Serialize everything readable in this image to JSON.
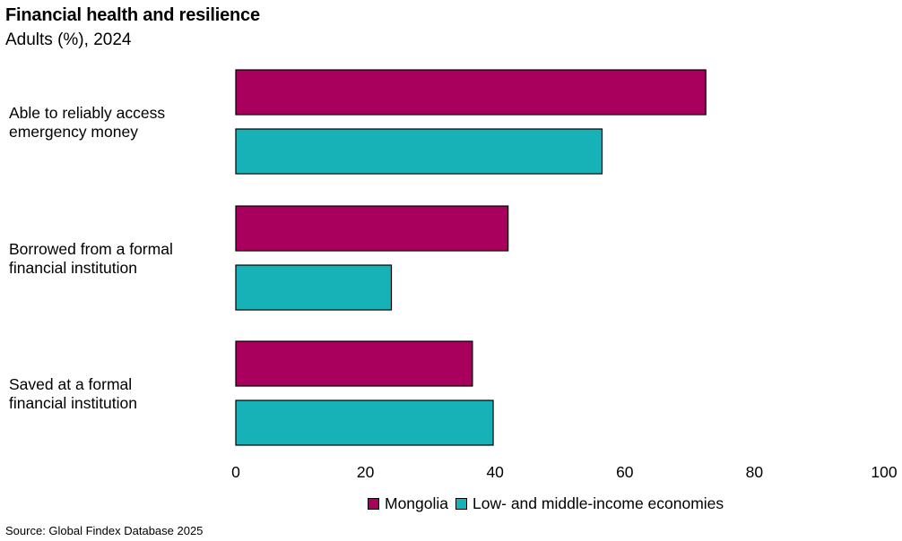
{
  "chart_data": {
    "type": "bar",
    "orientation": "horizontal",
    "title": "Financial health and resilience",
    "subtitle": "Adults (%), 2024",
    "categories": [
      [
        "Able to reliably access",
        "emergency money"
      ],
      [
        "Borrowed from a formal",
        "financial institution"
      ],
      [
        "Saved at a formal",
        "financial institution"
      ]
    ],
    "series": [
      {
        "name": "Mongolia",
        "color": "#A8005C",
        "values": [
          72.5,
          42,
          36.5
        ]
      },
      {
        "name": "Low- and middle-income economies",
        "color": "#17B1B8",
        "values": [
          56.5,
          24,
          39.7
        ]
      }
    ],
    "xlim": [
      0,
      100
    ],
    "xticks": [
      "0",
      "20",
      "40",
      "60",
      "80",
      "100"
    ],
    "grid": false,
    "legend_position": "bottom"
  },
  "source": "Source: Global Findex Database 2025"
}
